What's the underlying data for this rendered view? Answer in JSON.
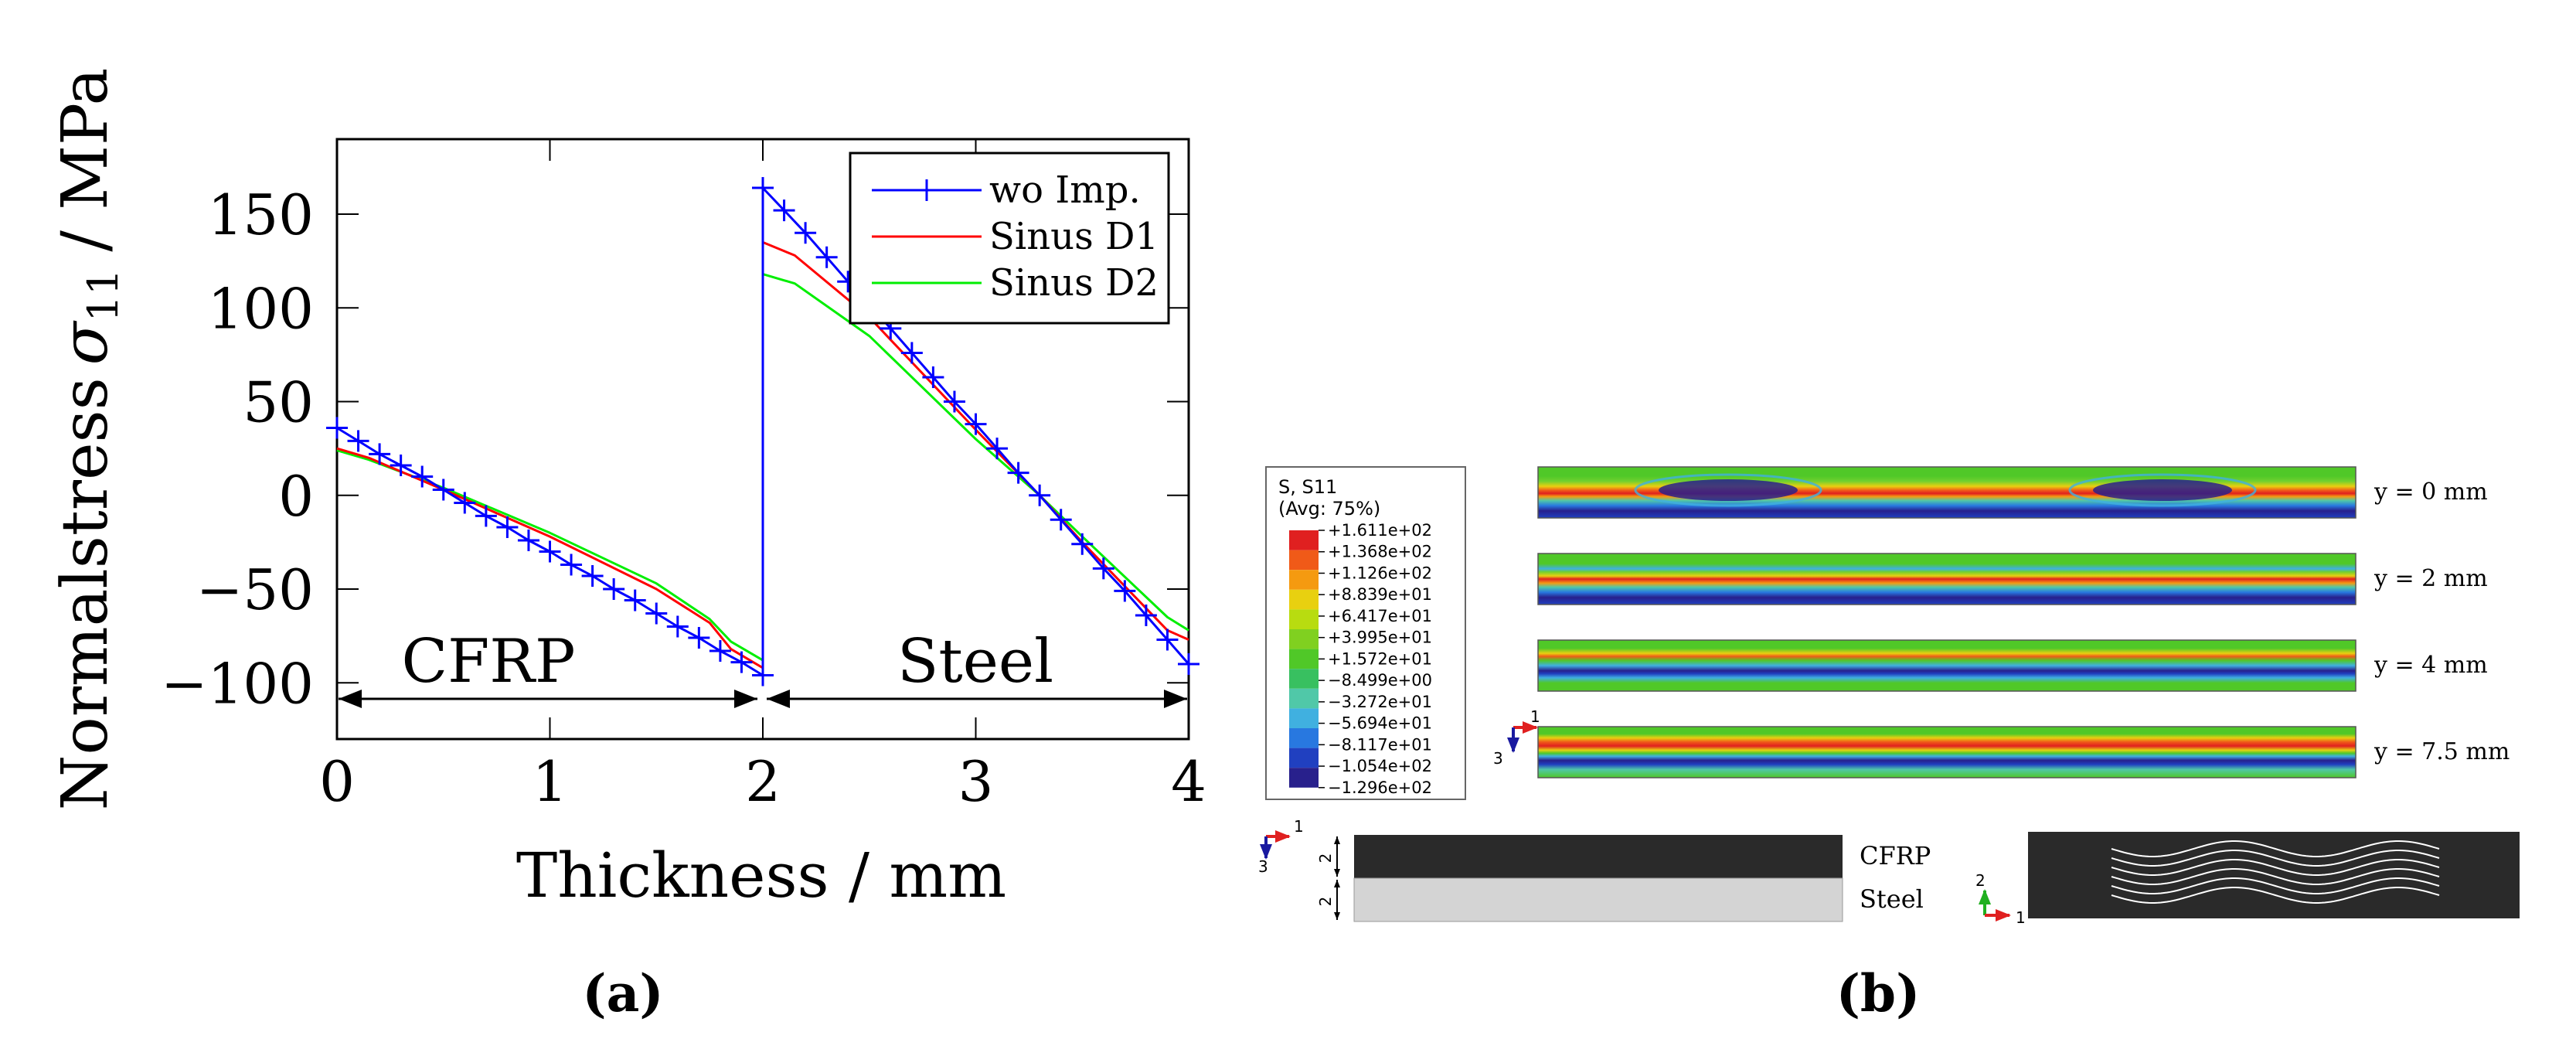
{
  "chart_data": {
    "type": "line",
    "ylabel_prefix": "Normalstress",
    "ylabel_symbol": "σ",
    "ylabel_sub": "11",
    "ylabel_unit": "/ MPa",
    "xlabel": "Thickness / mm",
    "xlim": [
      0,
      4
    ],
    "ylim": [
      -130,
      190
    ],
    "xticks": [
      0,
      1,
      2,
      3,
      4
    ],
    "yticks": [
      -100,
      -50,
      0,
      50,
      100,
      150
    ],
    "xtick_labels": [
      "0",
      "1",
      "2",
      "3",
      "4"
    ],
    "ytick_labels": [
      "−100",
      "−50",
      "0",
      "50",
      "100",
      "150"
    ],
    "legend_position": "top-right",
    "series": [
      {
        "name": "wo Imp.",
        "color": "#0000ff",
        "marker": "plus",
        "x": [
          0,
          0.1,
          0.2,
          0.3,
          0.4,
          0.5,
          0.6,
          0.7,
          0.8,
          0.9,
          1.0,
          1.1,
          1.2,
          1.3,
          1.4,
          1.5,
          1.6,
          1.7,
          1.8,
          1.9,
          2.0,
          2.0,
          2.1,
          2.2,
          2.3,
          2.4,
          2.5,
          2.6,
          2.7,
          2.8,
          2.9,
          3.0,
          3.1,
          3.2,
          3.3,
          3.4,
          3.5,
          3.6,
          3.7,
          3.8,
          3.9,
          4.0
        ],
        "y": [
          36,
          29,
          22,
          16,
          10,
          3,
          -4,
          -11,
          -17,
          -24,
          -30,
          -37,
          -43,
          -50,
          -56,
          -63,
          -70,
          -76,
          -83,
          -89,
          -96,
          164,
          152,
          140,
          127,
          114,
          102,
          89,
          76,
          63,
          50,
          38,
          25,
          12,
          0,
          -13,
          -26,
          -39,
          -51,
          -64,
          -77,
          -90
        ]
      },
      {
        "name": "Sinus D1",
        "color": "#ff0000",
        "marker": "none",
        "x": [
          0,
          0.15,
          0.5,
          1.0,
          1.5,
          1.75,
          1.85,
          2.0,
          2.0,
          2.15,
          2.5,
          3.0,
          3.3,
          3.5,
          3.9,
          4.0
        ],
        "y": [
          25,
          20,
          3,
          -22,
          -50,
          -68,
          -82,
          -92,
          135,
          128,
          95,
          35,
          0,
          -25,
          -72,
          -77
        ]
      },
      {
        "name": "Sinus D2",
        "color": "#00ee00",
        "marker": "none",
        "x": [
          0,
          0.15,
          0.5,
          1.0,
          1.5,
          1.75,
          1.85,
          2.0,
          2.0,
          2.15,
          2.5,
          3.0,
          3.3,
          3.5,
          3.9,
          4.0
        ],
        "y": [
          24,
          19,
          4,
          -20,
          -47,
          -66,
          -78,
          -88,
          118,
          113,
          85,
          30,
          0,
          -22,
          -65,
          -72
        ]
      }
    ],
    "annotations": [
      {
        "text": "CFRP",
        "x_from": 0,
        "x_to": 2
      },
      {
        "text": "Steel",
        "x_from": 2,
        "x_to": 4
      }
    ],
    "panel_label": "(a)"
  },
  "contour": {
    "legend_title_line1": "S, S11",
    "legend_title_line2": "(Avg: 75%)",
    "levels": [
      "+1.611e+02",
      "+1.368e+02",
      "+1.126e+02",
      "+8.839e+01",
      "+6.417e+01",
      "+3.995e+01",
      "+1.572e+01",
      "−8.499e+00",
      "−3.272e+01",
      "−5.694e+01",
      "−8.117e+01",
      "−1.054e+02",
      "−1.296e+02"
    ],
    "colors": [
      "#e02020",
      "#f05a18",
      "#f59a10",
      "#e8d010",
      "#b8dc10",
      "#80d020",
      "#50c828",
      "#38c060",
      "#50c8a8",
      "#40b0e0",
      "#2878e0",
      "#2040c0",
      "#28208c"
    ],
    "strips": [
      "y = 0 mm",
      "y = 2 mm",
      "y = 4 mm",
      "y = 7.5 mm"
    ],
    "axis_1": "1",
    "axis_3": "3",
    "axis_2": "2",
    "layup_cfrp": "CFRP",
    "layup_steel": "Steel",
    "dim_top": "2",
    "dim_bottom": "2",
    "panel_label": "(b)"
  }
}
